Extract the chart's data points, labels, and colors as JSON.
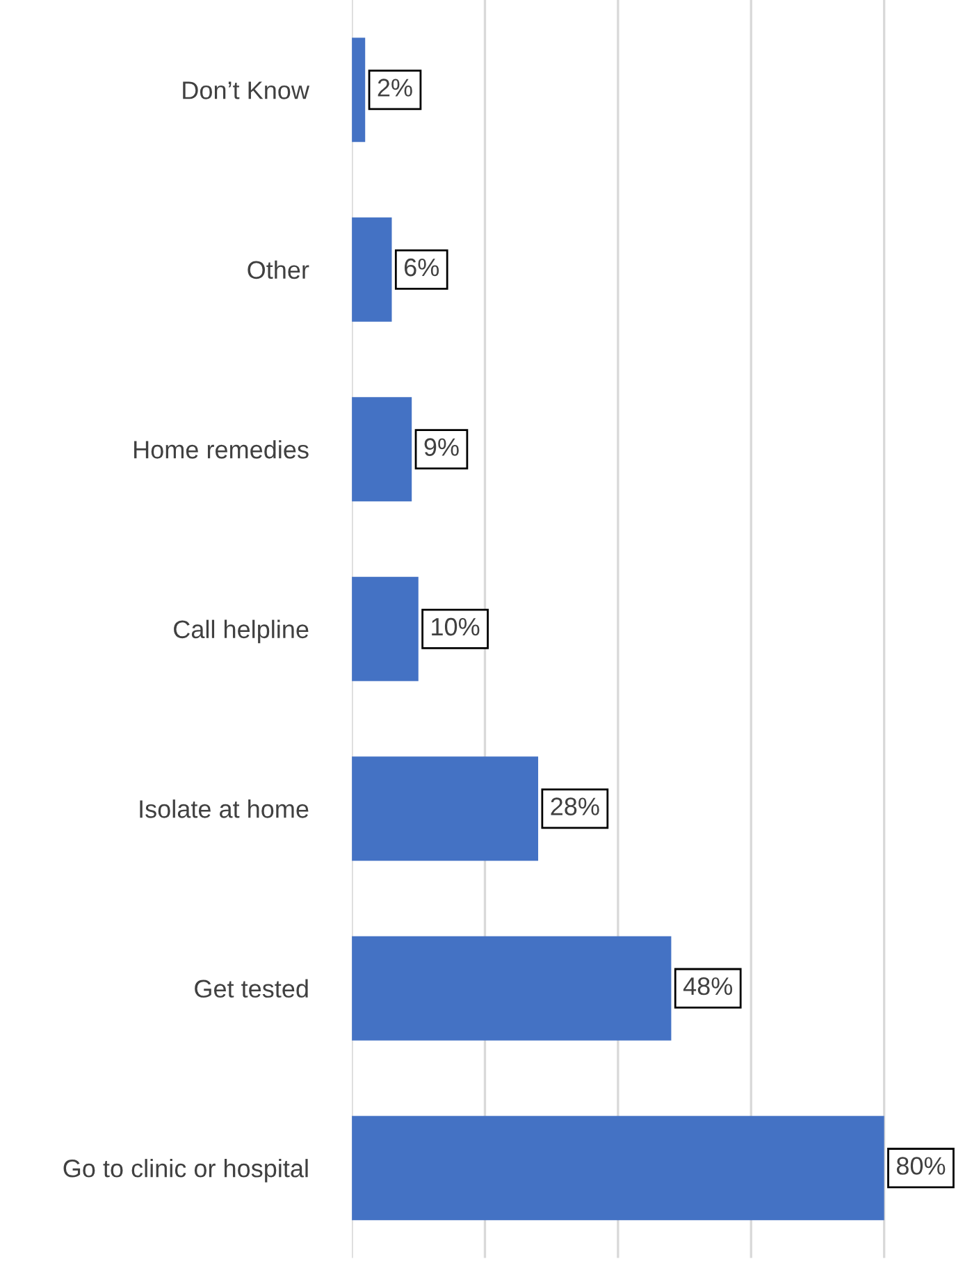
{
  "chart_data": {
    "type": "bar",
    "orientation": "horizontal",
    "categories": [
      "Don’t Know",
      "Other",
      "Home remedies",
      "Call helpline",
      "Isolate at home",
      "Get tested",
      "Go to clinic or hospital"
    ],
    "values": [
      2,
      6,
      9,
      10,
      28,
      48,
      80
    ],
    "color": "#4472c4",
    "value_labels": [
      "2%",
      "6%",
      "9%",
      "10%",
      "28%",
      "48%",
      "80%"
    ],
    "xticks": [
      {
        "value": 0,
        "label": null
      },
      {
        "value": 20,
        "label": null
      },
      {
        "value": 40,
        "label": null
      },
      {
        "value": 60,
        "label": null
      },
      {
        "value": 80,
        "label": null
      }
    ],
    "tick_labels": "y",
    "grid": "x",
    "legend": false
  }
}
